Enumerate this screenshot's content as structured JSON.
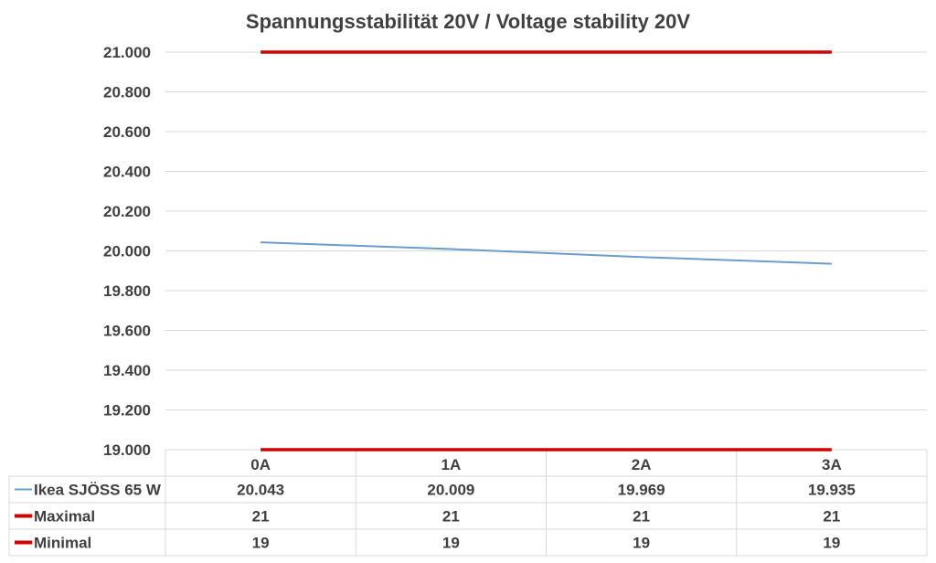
{
  "chart_data": {
    "type": "line",
    "title": "Spannungsstabilität 20V / Voltage stability 20V",
    "categories": [
      "0A",
      "1A",
      "2A",
      "3A"
    ],
    "ylim": [
      19.0,
      21.0
    ],
    "yticks": [
      "21.000",
      "20.800",
      "20.600",
      "20.400",
      "20.200",
      "20.000",
      "19.800",
      "19.600",
      "19.400",
      "19.200",
      "19.000"
    ],
    "grid": true,
    "legend": "data-table",
    "series": [
      {
        "name": "Ikea SJÖSS 65 W",
        "values": [
          20.043,
          20.009,
          19.969,
          19.935
        ],
        "labels": [
          "20.043",
          "20.009",
          "19.969",
          "19.935"
        ],
        "color": "#6a9ccc"
      },
      {
        "name": "Maximal",
        "values": [
          21,
          21,
          21,
          21
        ],
        "labels": [
          "21",
          "21",
          "21",
          "21"
        ],
        "color": "#d00000"
      },
      {
        "name": "Minimal",
        "values": [
          19,
          19,
          19,
          19
        ],
        "labels": [
          "19",
          "19",
          "19",
          "19"
        ],
        "color": "#d00000"
      }
    ]
  }
}
